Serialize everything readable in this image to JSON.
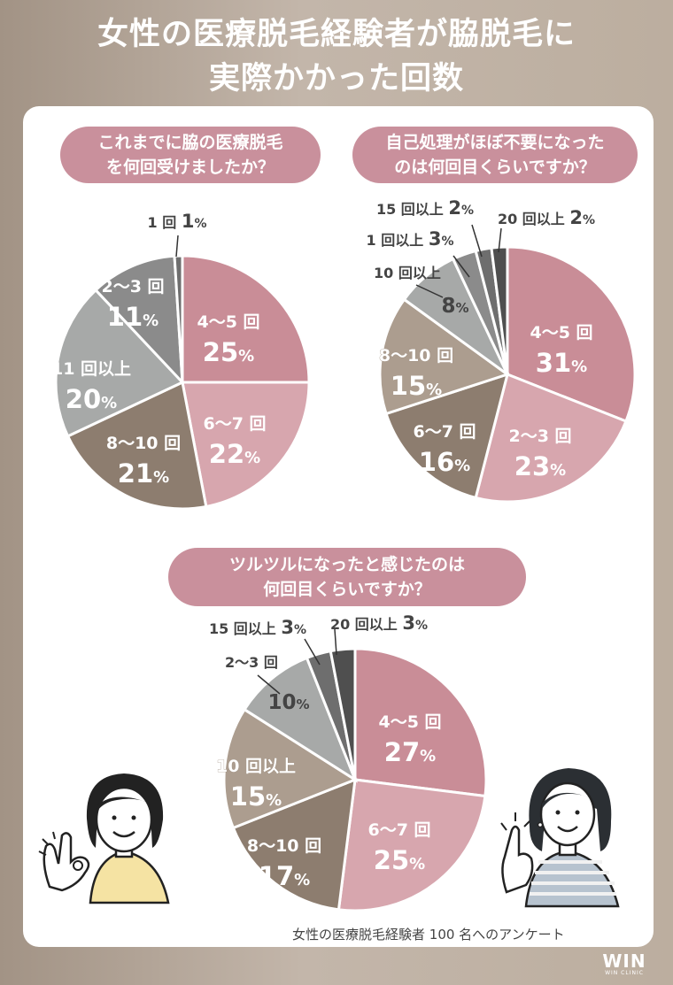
{
  "title": [
    "女性の医療脱毛経験者が脇脱毛に",
    "実際かかった回数"
  ],
  "note": "女性の医療脱毛経験者 100 名へのアンケート",
  "logo": {
    "mark": "WIN",
    "sub": "WIN CLINIC"
  },
  "colors": {
    "pink_dark": "#c98d97",
    "pink_light": "#d7a6ae",
    "taupe_dark": "#8d7d6f",
    "taupe": "#ac9d8f",
    "gray_light": "#a7a9a8",
    "gray": "#8b8b8b",
    "gray_dark": "#6e6e6e",
    "charcoal": "#4f4f4f",
    "question_bg": "#c9909c"
  },
  "chart_data": [
    {
      "type": "pie",
      "title": [
        "これまでに脇の医療脱毛",
        "を何回受けましたか？"
      ],
      "slices": [
        {
          "label": "4〜5 回",
          "value": 25,
          "pct": "25",
          "color": "#c98d97"
        },
        {
          "label": "6〜7 回",
          "value": 22,
          "pct": "22",
          "color": "#d7a6ae"
        },
        {
          "label": "8〜10 回",
          "value": 21,
          "pct": "21",
          "color": "#8d7d6f"
        },
        {
          "label": "11 回以上",
          "value": 20,
          "pct": "20",
          "color": "#a7a9a8"
        },
        {
          "label": "2〜3 回",
          "value": 11,
          "pct": "11",
          "color": "#8b8b8b"
        },
        {
          "label": "1 回",
          "value": 1,
          "pct": "1",
          "color": "#6e6e6e"
        }
      ]
    },
    {
      "type": "pie",
      "title": [
        "自己処理がほぼ不要になった",
        "のは何回目くらいですか？"
      ],
      "slices": [
        {
          "label": "4〜5 回",
          "value": 31,
          "pct": "31",
          "color": "#c98d97"
        },
        {
          "label": "2〜3 回",
          "value": 23,
          "pct": "23",
          "color": "#d7a6ae"
        },
        {
          "label": "6〜7 回",
          "value": 16,
          "pct": "16",
          "color": "#8d7d6f"
        },
        {
          "label": "8〜10 回",
          "value": 15,
          "pct": "15",
          "color": "#ac9d8f"
        },
        {
          "label": "10 回以上",
          "value": 8,
          "pct": "8",
          "color": "#a7a9a8"
        },
        {
          "label": "1 回以上",
          "value": 3,
          "pct": "3",
          "color": "#8b8b8b"
        },
        {
          "label": "15 回以上",
          "value": 2,
          "pct": "2",
          "color": "#6e6e6e"
        },
        {
          "label": "20 回以上",
          "value": 2,
          "pct": "2",
          "color": "#4f4f4f"
        }
      ]
    },
    {
      "type": "pie",
      "title": [
        "ツルツルになったと感じたのは",
        "何回目くらいですか？"
      ],
      "slices": [
        {
          "label": "4〜5 回",
          "value": 27,
          "pct": "27",
          "color": "#c98d97"
        },
        {
          "label": "6〜7 回",
          "value": 25,
          "pct": "25",
          "color": "#d7a6ae"
        },
        {
          "label": "8〜10 回",
          "value": 17,
          "pct": "17",
          "color": "#8d7d6f"
        },
        {
          "label": "10 回以上",
          "value": 15,
          "pct": "15",
          "color": "#ac9d8f"
        },
        {
          "label": "2〜3 回",
          "value": 10,
          "pct": "10",
          "color": "#a7a9a8"
        },
        {
          "label": "15 回以上",
          "value": 3,
          "pct": "3",
          "color": "#6e6e6e"
        },
        {
          "label": "20 回以上",
          "value": 3,
          "pct": "3",
          "color": "#4f4f4f"
        }
      ]
    }
  ]
}
